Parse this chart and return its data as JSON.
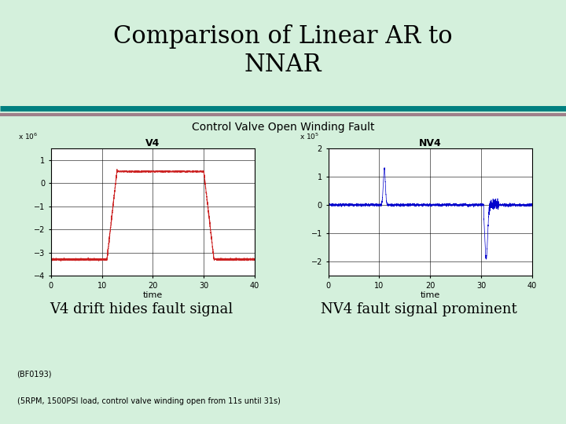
{
  "title": "Comparison of Linear AR to\nNNAR",
  "subtitle": "Control Valve Open Winding Fault",
  "bg_color": "#d4f0dc",
  "plot_bg": "#ffffff",
  "left_plot_title": "V4",
  "right_plot_title": "NV4",
  "left_xlabel": "time",
  "right_xlabel": "time",
  "left_ylim": [
    -4,
    1.5
  ],
  "right_ylim": [
    -2.5,
    2.0
  ],
  "left_yticks": [
    -4,
    -3,
    -2,
    -1,
    0,
    1
  ],
  "right_yticks": [
    -2,
    -1,
    0,
    1,
    2
  ],
  "xlim": [
    0,
    40
  ],
  "xticks": [
    0,
    10,
    20,
    30,
    40
  ],
  "left_line_color": "#cc2222",
  "right_line_color": "#0000cc",
  "text_left": "V4 drift hides fault signal",
  "text_right": "NV4 fault signal prominent",
  "footnote1": "(BF0193)",
  "footnote2": "(5RPM, 1500PSI load, control valve winding open from 11s until 31s)",
  "title_color": "#000000",
  "title_fontsize": 22,
  "subtitle_fontsize": 10,
  "annotation_fontsize": 13,
  "footnote_fontsize": 7,
  "sep_color1": "#008080",
  "sep_color2": "#9e7f8a",
  "sep_lw1": 5,
  "sep_lw2": 3
}
